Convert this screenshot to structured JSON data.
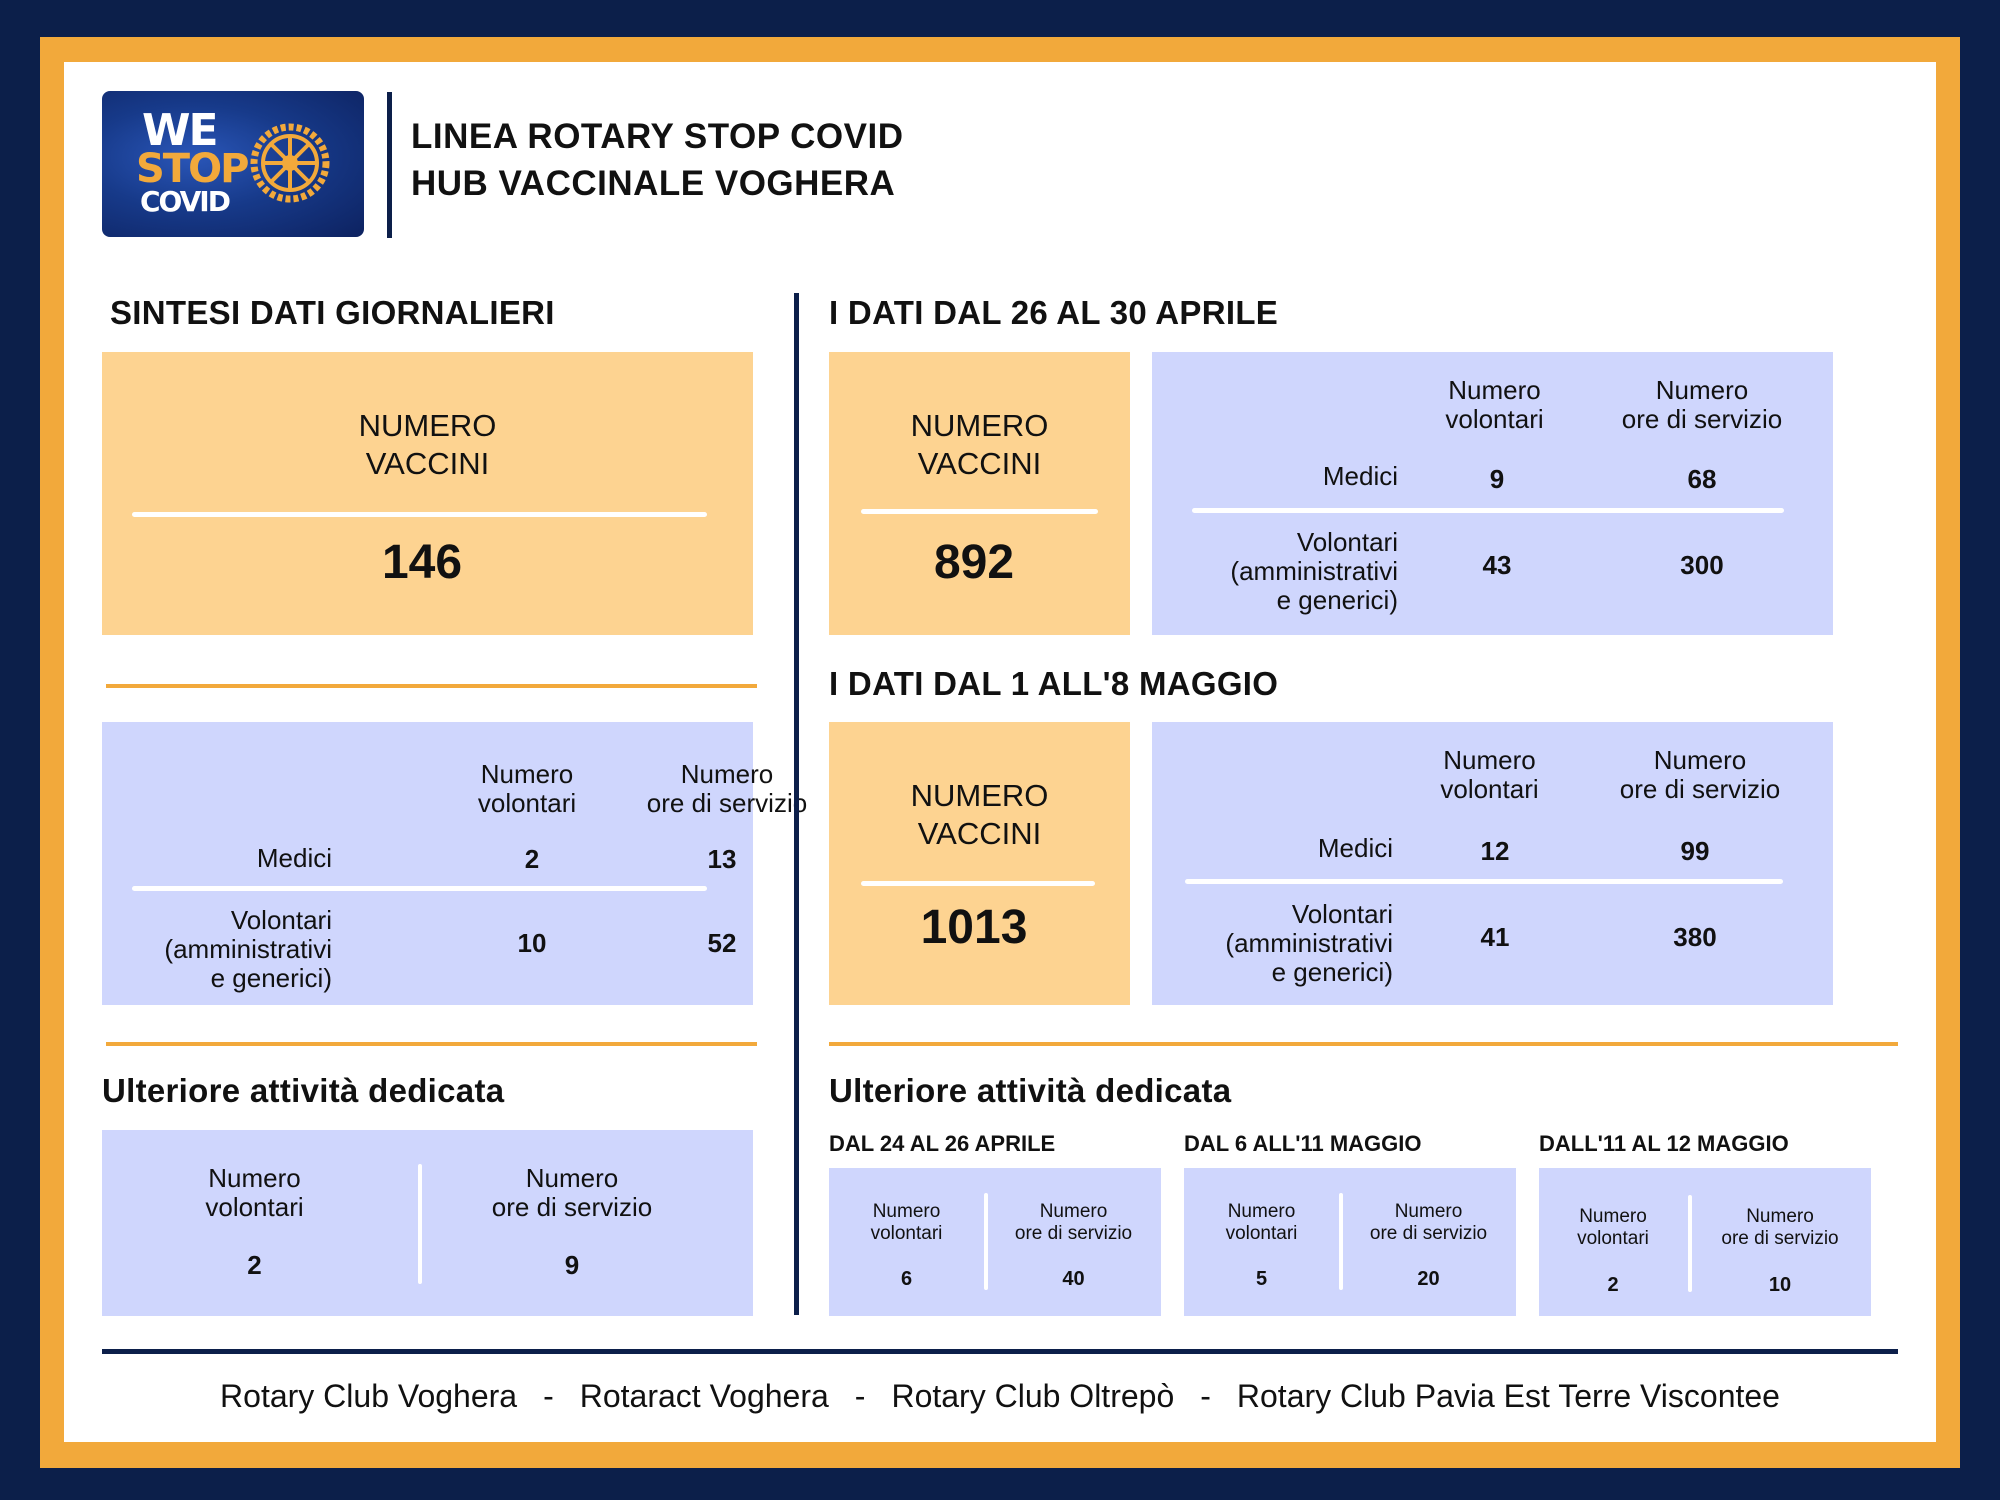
{
  "header": {
    "logo_text": {
      "we": "WE",
      "stop": "STOP",
      "covid": "COVID"
    },
    "line1": "LINEA ROTARY STOP COVID",
    "line2": "HUB VACCINALE VOGHERA"
  },
  "colors": {
    "navy": "#0c1f4a",
    "orange": "#f2a93b",
    "peach": "#fdd391",
    "lavender": "#cfd6fd"
  },
  "daily": {
    "title": "SINTESI DATI GIORNALIERI",
    "vaccini_label_1": "NUMERO",
    "vaccini_label_2": "VACCINI",
    "vaccini_value": "146",
    "table": {
      "col1_a": "Numero",
      "col1_b": "volontari",
      "col2_a": "Numero",
      "col2_b": "ore di servizio",
      "row1_label": "Medici",
      "row1_v1": "2",
      "row1_v2": "13",
      "row2_label_1": "Volontari",
      "row2_label_2": "(amministrativi",
      "row2_label_3": "e generici)",
      "row2_v1": "10",
      "row2_v2": "52"
    },
    "extra": {
      "title": "Ulteriore attività dedicata",
      "col1_a": "Numero",
      "col1_b": "volontari",
      "col1_v": "2",
      "col2_a": "Numero",
      "col2_b": "ore di servizio",
      "col2_v": "9"
    }
  },
  "april": {
    "title": "I DATI DAL 26 AL 30 APRILE",
    "vaccini_label_1": "NUMERO",
    "vaccini_label_2": "VACCINI",
    "vaccini_value": "892",
    "table": {
      "col1_a": "Numero",
      "col1_b": "volontari",
      "col2_a": "Numero",
      "col2_b": "ore di servizio",
      "row1_label": "Medici",
      "row1_v1": "9",
      "row1_v2": "68",
      "row2_label_1": "Volontari",
      "row2_label_2": "(amministrativi",
      "row2_label_3": "e generici)",
      "row2_v1": "43",
      "row2_v2": "300"
    }
  },
  "may": {
    "title": "I DATI DAL 1 ALL'8 MAGGIO",
    "vaccini_label_1": "NUMERO",
    "vaccini_label_2": "VACCINI",
    "vaccini_value": "1013",
    "table": {
      "col1_a": "Numero",
      "col1_b": "volontari",
      "col2_a": "Numero",
      "col2_b": "ore di servizio",
      "row1_label": "Medici",
      "row1_v1": "12",
      "row1_v2": "99",
      "row2_label_1": "Volontari",
      "row2_label_2": "(amministrativi",
      "row2_label_3": "e generici)",
      "row2_v1": "41",
      "row2_v2": "380"
    }
  },
  "extra_right": {
    "title": "Ulteriore attività dedicata",
    "periods": [
      {
        "title": "DAL 24 AL 26 APRILE",
        "col1_a": "Numero",
        "col1_b": "volontari",
        "col1_v": "6",
        "col2_a": "Numero",
        "col2_b": "ore di servizio",
        "col2_v": "40"
      },
      {
        "title": "DAL 6 ALL'11 MAGGIO",
        "col1_a": "Numero",
        "col1_b": "volontari",
        "col1_v": "5",
        "col2_a": "Numero",
        "col2_b": "ore di servizio",
        "col2_v": "20"
      },
      {
        "title": "DALL'11 AL 12 MAGGIO",
        "col1_a": "Numero",
        "col1_b": "volontari",
        "col1_v": "2",
        "col2_a": "Numero",
        "col2_b": "ore di servizio",
        "col2_v": "10"
      }
    ]
  },
  "footer": {
    "clubs": [
      "Rotary Club Voghera",
      "Rotaract Voghera",
      "Rotary Club Oltrepò",
      "Rotary Club Pavia Est Terre Viscontee"
    ],
    "separator": "-"
  }
}
